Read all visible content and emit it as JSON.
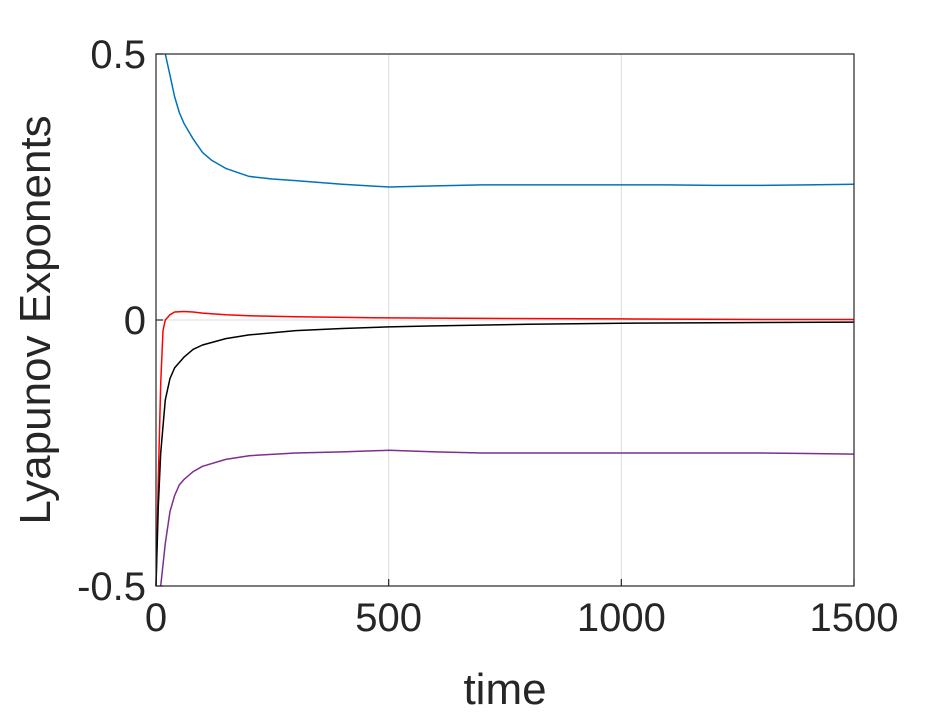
{
  "chart_data": {
    "type": "line",
    "xlabel": "time",
    "ylabel": "Lyapunov Exponents",
    "xlim": [
      0,
      1500
    ],
    "ylim": [
      -0.5,
      0.5
    ],
    "xticks": [
      0,
      500,
      1000,
      1500
    ],
    "xtick_labels": [
      "0",
      "500",
      "1000",
      "1500"
    ],
    "yticks": [
      -0.5,
      0,
      0.5
    ],
    "ytick_labels": [
      "-0.5",
      "0",
      "0.5"
    ],
    "grid": true,
    "series": [
      {
        "color": "#0072BD",
        "x": [
          20,
          30,
          40,
          50,
          60,
          80,
          100,
          120,
          150,
          200,
          250,
          300,
          400,
          500,
          600,
          700,
          800,
          900,
          1000,
          1100,
          1200,
          1300,
          1400,
          1500
        ],
        "y": [
          0.5,
          0.46,
          0.42,
          0.39,
          0.37,
          0.34,
          0.315,
          0.3,
          0.285,
          0.27,
          0.265,
          0.262,
          0.255,
          0.25,
          0.252,
          0.254,
          0.254,
          0.254,
          0.254,
          0.254,
          0.253,
          0.253,
          0.254,
          0.255
        ]
      },
      {
        "color": "#FF0000",
        "x": [
          0,
          5,
          10,
          15,
          20,
          30,
          40,
          60,
          80,
          100,
          150,
          200,
          300,
          500,
          700,
          1000,
          1300,
          1500
        ],
        "y": [
          -0.5,
          -0.3,
          -0.12,
          -0.02,
          0.0,
          0.01,
          0.015,
          0.016,
          0.015,
          0.013,
          0.01,
          0.008,
          0.006,
          0.004,
          0.003,
          0.002,
          0.001,
          0.001
        ]
      },
      {
        "color": "#000000",
        "x": [
          0,
          5,
          10,
          20,
          30,
          40,
          60,
          80,
          100,
          150,
          200,
          300,
          400,
          500,
          600,
          800,
          1000,
          1200,
          1500
        ],
        "y": [
          -0.5,
          -0.35,
          -0.25,
          -0.15,
          -0.11,
          -0.09,
          -0.07,
          -0.055,
          -0.047,
          -0.035,
          -0.028,
          -0.02,
          -0.016,
          -0.013,
          -0.011,
          -0.008,
          -0.006,
          -0.005,
          -0.004
        ]
      },
      {
        "color": "#7E2F8E",
        "x": [
          10,
          20,
          30,
          40,
          50,
          60,
          80,
          100,
          150,
          200,
          300,
          400,
          500,
          600,
          700,
          800,
          900,
          1000,
          1100,
          1200,
          1300,
          1400,
          1500
        ],
        "y": [
          -0.5,
          -0.42,
          -0.36,
          -0.33,
          -0.31,
          -0.3,
          -0.285,
          -0.275,
          -0.262,
          -0.255,
          -0.25,
          -0.248,
          -0.245,
          -0.248,
          -0.25,
          -0.25,
          -0.25,
          -0.25,
          -0.25,
          -0.25,
          -0.25,
          -0.251,
          -0.252
        ]
      }
    ]
  }
}
